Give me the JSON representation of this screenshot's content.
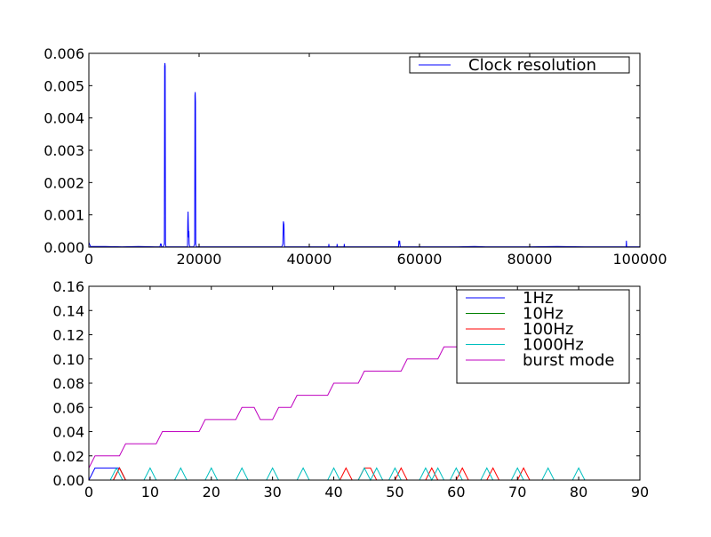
{
  "figure": {
    "background": "#ffffff"
  },
  "chart_data": [
    {
      "type": "line",
      "title": "",
      "xlabel": "",
      "ylabel": "",
      "xlim": [
        0,
        100000
      ],
      "ylim": [
        0,
        0.006
      ],
      "xticks": [
        0,
        20000,
        40000,
        60000,
        80000,
        100000
      ],
      "xtick_labels": [
        "0",
        "20000",
        "40000",
        "60000",
        "80000",
        "100000"
      ],
      "yticks": [
        0,
        0.001,
        0.002,
        0.003,
        0.004,
        0.005,
        0.006
      ],
      "ytick_labels": [
        "0.000",
        "0.001",
        "0.002",
        "0.003",
        "0.004",
        "0.005",
        "0.006"
      ],
      "grid": false,
      "legend": "top-right",
      "series": [
        {
          "name": "Clock resolution",
          "color": "#0000ff",
          "x": [
            0,
            300,
            600,
            3000,
            6000,
            9000,
            12000,
            12900,
            13000,
            13100,
            13200,
            13500,
            13700,
            13750,
            13800,
            13850,
            13900,
            14000,
            14500,
            17000,
            17900,
            17950,
            18000,
            18050,
            18100,
            18150,
            18200,
            18300,
            18500,
            19000,
            19200,
            19250,
            19300,
            19350,
            19400,
            19500,
            20000,
            25000,
            30000,
            35000,
            35200,
            35300,
            35400,
            35500,
            36000,
            40000,
            43500,
            43550,
            43600,
            45000,
            45050,
            45100,
            46300,
            46350,
            46400,
            50000,
            56200,
            56250,
            56300,
            56400,
            56450,
            56500,
            56600,
            60000,
            67000,
            70000,
            72000,
            75000,
            80000,
            85000,
            90000,
            95000,
            97500,
            97550,
            97600,
            100000
          ],
          "y": [
            0.00015,
            2e-05,
            2e-05,
            2e-05,
            1e-05,
            2e-05,
            1e-05,
            1e-05,
            0.0001,
            0.0001,
            1e-05,
            1e-05,
            0.0001,
            0.0056,
            0.0057,
            0.0056,
            0.0001,
            1e-05,
            1e-05,
            1e-05,
            1e-05,
            0.0008,
            0.0011,
            0.0007,
            0.0003,
            0.0005,
            0.0001,
            1e-05,
            1e-05,
            1e-05,
            0.0001,
            0.0047,
            0.0048,
            0.0045,
            0.0001,
            1e-05,
            1e-05,
            1e-05,
            1e-05,
            1e-05,
            0.0001,
            0.0008,
            0.0007,
            1e-05,
            1e-05,
            1e-05,
            1e-05,
            0.0001,
            1e-05,
            1e-05,
            0.0001,
            1e-05,
            1e-05,
            0.0001,
            1e-05,
            1e-05,
            1e-05,
            0.0002,
            0.0001,
            0.0002,
            0.0001,
            1e-05,
            1e-05,
            1e-05,
            1e-05,
            2e-05,
            1e-05,
            1e-05,
            1e-05,
            2e-05,
            1e-05,
            1e-05,
            1e-05,
            0.0002,
            1e-05,
            1e-05
          ]
        }
      ]
    },
    {
      "type": "line",
      "title": "",
      "xlabel": "",
      "ylabel": "",
      "xlim": [
        0,
        90
      ],
      "ylim": [
        0,
        0.16
      ],
      "xticks": [
        0,
        10,
        20,
        30,
        40,
        50,
        60,
        70,
        80,
        90
      ],
      "xtick_labels": [
        "0",
        "10",
        "20",
        "30",
        "40",
        "50",
        "60",
        "70",
        "80",
        "90"
      ],
      "yticks": [
        0,
        0.02,
        0.04,
        0.06,
        0.08,
        0.1,
        0.12,
        0.14,
        0.16
      ],
      "ytick_labels": [
        "0.00",
        "0.02",
        "0.04",
        "0.06",
        "0.08",
        "0.10",
        "0.12",
        "0.14",
        "0.16"
      ],
      "grid": false,
      "legend": "top-right",
      "series": [
        {
          "name": "1Hz",
          "color": "#0000ff",
          "x": [
            0,
            1,
            5,
            6
          ],
          "y": [
            0,
            0.01,
            0.01,
            0
          ]
        },
        {
          "name": "10Hz",
          "color": "#008000",
          "x": [
            0,
            4,
            5,
            6,
            60
          ],
          "y": [
            0,
            0,
            0.01,
            0,
            0
          ]
        },
        {
          "name": "100Hz",
          "color": "#ff0000",
          "x": [
            0,
            4,
            5,
            6,
            41,
            42,
            43,
            44,
            45,
            46,
            47,
            50,
            51,
            52,
            55,
            56,
            57,
            60,
            61,
            62,
            65,
            66,
            67,
            70,
            71,
            72,
            82
          ],
          "y": [
            0,
            0,
            0.01,
            0,
            0,
            0.01,
            0,
            0,
            0.01,
            0.01,
            0,
            0,
            0.01,
            0,
            0,
            0.01,
            0,
            0,
            0.01,
            0,
            0,
            0.01,
            0,
            0,
            0.01,
            0,
            0
          ]
        },
        {
          "name": "1000Hz",
          "color": "#00bfbf",
          "x": [
            0,
            3.5,
            4.5,
            5.5,
            9,
            10,
            11,
            14,
            15,
            16,
            19,
            20,
            21,
            24,
            25,
            26,
            29,
            30,
            31,
            34,
            35,
            36,
            39,
            40,
            41,
            44,
            45,
            46,
            47,
            48,
            49,
            50,
            51,
            54,
            55,
            56,
            57,
            58,
            59,
            60,
            61,
            64,
            65,
            66,
            69,
            70,
            71,
            74,
            75,
            76,
            79,
            80,
            81,
            82
          ],
          "y": [
            0,
            0,
            0.01,
            0,
            0,
            0.01,
            0,
            0,
            0.01,
            0,
            0,
            0.01,
            0,
            0,
            0.01,
            0,
            0,
            0.01,
            0,
            0,
            0.01,
            0,
            0,
            0.01,
            0,
            0,
            0.01,
            0,
            0.01,
            0,
            0,
            0.01,
            0,
            0,
            0.01,
            0,
            0.01,
            0,
            0,
            0.01,
            0,
            0,
            0.01,
            0,
            0,
            0.01,
            0,
            0,
            0.01,
            0,
            0,
            0.01,
            0,
            0
          ]
        },
        {
          "name": "burst mode",
          "color": "#bf00bf",
          "x": [
            0,
            1,
            5,
            6,
            11,
            12,
            18,
            19,
            24,
            25,
            27,
            28,
            29,
            30,
            31,
            32,
            33,
            34,
            39,
            40,
            44,
            45,
            51,
            52,
            57,
            58,
            62,
            63
          ],
          "y": [
            0.01,
            0.02,
            0.02,
            0.03,
            0.03,
            0.04,
            0.04,
            0.05,
            0.05,
            0.06,
            0.06,
            0.05,
            0.05,
            0.05,
            0.06,
            0.06,
            0.06,
            0.07,
            0.07,
            0.08,
            0.08,
            0.09,
            0.09,
            0.1,
            0.1,
            0.11,
            0.11,
            0.12
          ]
        }
      ]
    }
  ]
}
